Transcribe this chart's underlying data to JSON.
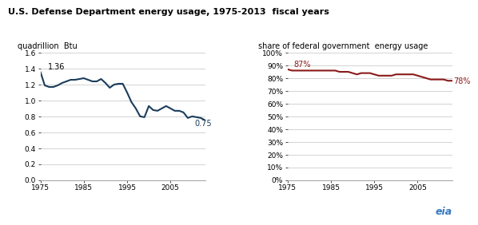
{
  "title": "U.S. Defense Department energy usage, 1975-2013  fiscal years",
  "left_ylabel": "quadrillion  Btu",
  "right_ylabel": "share of federal government  energy usage",
  "left_ylim": [
    0.0,
    1.6
  ],
  "right_ylim": [
    0.0,
    1.0
  ],
  "left_yticks": [
    0.0,
    0.2,
    0.4,
    0.6,
    0.8,
    1.0,
    1.2,
    1.4,
    1.6
  ],
  "right_yticks": [
    0.0,
    0.1,
    0.2,
    0.3,
    0.4,
    0.5,
    0.6,
    0.7,
    0.8,
    0.9,
    1.0
  ],
  "right_yticklabels": [
    "0%",
    "10%",
    "20%",
    "30%",
    "40%",
    "50%",
    "60%",
    "70%",
    "80%",
    "90%",
    "100%"
  ],
  "xlim": [
    1975,
    2013
  ],
  "xticks": [
    1975,
    1985,
    1995,
    2005
  ],
  "left_line_color": "#1a3d5c",
  "right_line_color": "#8b1a1a",
  "left_first_label": "1.36",
  "left_last_label": "0.75",
  "right_first_label": "87%",
  "right_last_label": "78%",
  "left_data": {
    "years": [
      1975,
      1976,
      1977,
      1978,
      1979,
      1980,
      1981,
      1982,
      1983,
      1984,
      1985,
      1986,
      1987,
      1988,
      1989,
      1990,
      1991,
      1992,
      1993,
      1994,
      1995,
      1996,
      1997,
      1998,
      1999,
      2000,
      2001,
      2002,
      2003,
      2004,
      2005,
      2006,
      2007,
      2008,
      2009,
      2010,
      2011,
      2012,
      2013
    ],
    "values": [
      1.36,
      1.19,
      1.17,
      1.17,
      1.19,
      1.22,
      1.24,
      1.26,
      1.26,
      1.27,
      1.28,
      1.26,
      1.24,
      1.24,
      1.27,
      1.22,
      1.16,
      1.2,
      1.21,
      1.21,
      1.1,
      0.98,
      0.9,
      0.8,
      0.79,
      0.93,
      0.88,
      0.87,
      0.9,
      0.93,
      0.9,
      0.87,
      0.87,
      0.85,
      0.78,
      0.8,
      0.79,
      0.78,
      0.75
    ]
  },
  "right_data": {
    "years": [
      1975,
      1976,
      1977,
      1978,
      1979,
      1980,
      1981,
      1982,
      1983,
      1984,
      1985,
      1986,
      1987,
      1988,
      1989,
      1990,
      1991,
      1992,
      1993,
      1994,
      1995,
      1996,
      1997,
      1998,
      1999,
      2000,
      2001,
      2002,
      2003,
      2004,
      2005,
      2006,
      2007,
      2008,
      2009,
      2010,
      2011,
      2012,
      2013
    ],
    "values": [
      0.87,
      0.86,
      0.86,
      0.86,
      0.86,
      0.86,
      0.86,
      0.86,
      0.86,
      0.86,
      0.86,
      0.86,
      0.85,
      0.85,
      0.85,
      0.84,
      0.83,
      0.84,
      0.84,
      0.84,
      0.83,
      0.82,
      0.82,
      0.82,
      0.82,
      0.83,
      0.83,
      0.83,
      0.83,
      0.83,
      0.82,
      0.81,
      0.8,
      0.79,
      0.79,
      0.79,
      0.79,
      0.78,
      0.78
    ]
  },
  "bg_color": "#ffffff",
  "grid_color": "#cccccc",
  "eia_logo_text": "eia"
}
